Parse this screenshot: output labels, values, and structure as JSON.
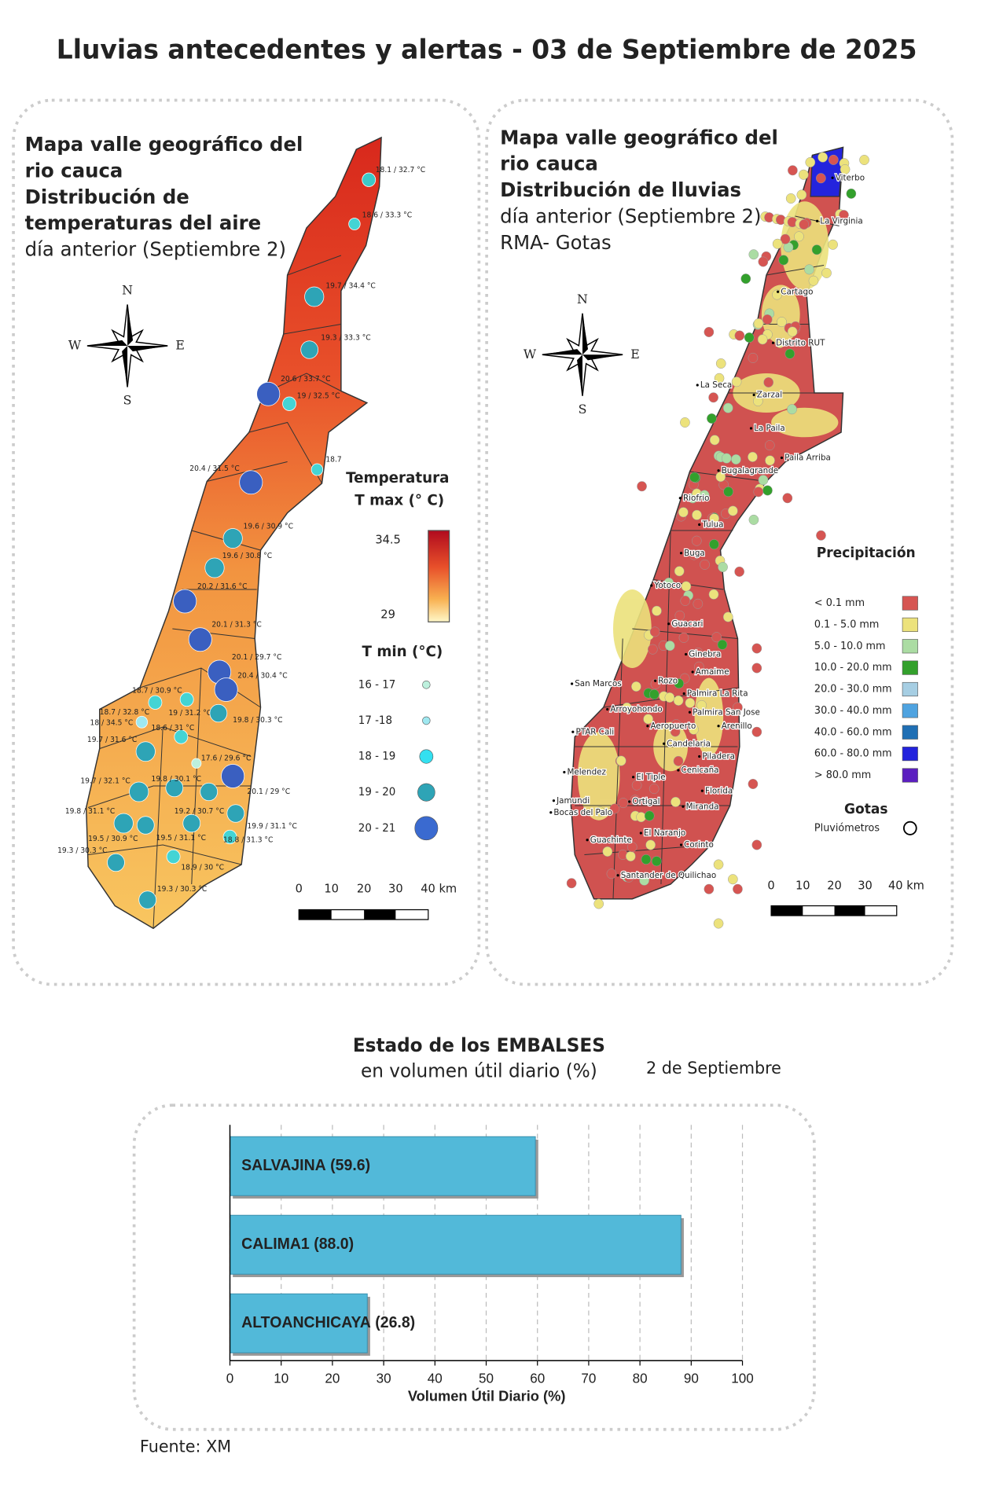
{
  "title": "Lluvias antecedentes y alertas - 03 de Septiembre de 2025",
  "temperature_map": {
    "title_lines": [
      {
        "text": "Mapa valle geográfico del",
        "bold": true
      },
      {
        "text": "rio cauca",
        "bold": true
      },
      {
        "text": "Distribución de",
        "bold": true
      },
      {
        "text": "temperaturas del aire",
        "bold": true
      },
      {
        "text": "día anterior (Septiembre 2)",
        "bold": false
      }
    ],
    "compass": {
      "n": "N",
      "w": "W",
      "e": "E",
      "s": "S"
    },
    "legend_title": "Temperatura",
    "legend_subtitle": "T max (° C)",
    "colorbar_max": "34.5",
    "colorbar_min": "29",
    "tmin_title": "T min (°C)",
    "tmin_classes": [
      "16 - 17",
      "17 -18",
      "18 - 19",
      "19 - 20",
      "20 - 21"
    ],
    "scale_labels": [
      "0",
      "10",
      "20",
      "30",
      "40 km"
    ],
    "stations": [
      "18.1 / 32.7 °C",
      "18.6 / 33.3 °C",
      "19.7 / 34.4 °C",
      "19.3 / 33.3 °C",
      "20.6 / 33.7 °C",
      "19 / 32.5 °C",
      "18.7",
      "20.4 / 31.5 °C",
      "19.6 / 30.9 °C",
      "19.6 / 30.8 °C",
      "20.2 / 31.6 °C",
      "20.1 / 31.3 °C",
      "20.1 / 29.7 °C",
      "20.4 / 30.4 °C",
      "18.7 / 30.9 °C",
      "19 / 31.2 °C",
      "19.8 / 30.3 °C",
      "18.7 / 32.8 °C",
      "18 / 34.5 °C",
      "18.6 / 31 °C",
      "19.7 / 31.6 °C",
      "17.6 / 29.6 °C",
      "19.7 / 32.1 °C",
      "19.8 / 30.1 °C",
      "20.1 / 29 °C",
      "19.8 / 31.1 °C",
      "19.2 / 30.7 °C",
      "19.9 / 31.1 °C",
      "19.5 / 30.9 °C",
      "19.5 / 31.1 °C",
      "18.8 / 31.3 °C",
      "19.3 / 30.3 °C",
      "18.9 / 30 °C",
      "19.3 / 30.3 °C"
    ]
  },
  "rain_map": {
    "title_lines": [
      {
        "text": "Mapa valle geográfico del",
        "bold": true
      },
      {
        "text": "rio cauca",
        "bold": true
      },
      {
        "text": "Distribución de lluvias",
        "bold": true
      },
      {
        "text": "día anterior (Septiembre 2)",
        "bold": false
      },
      {
        "text": "RMA- Gotas",
        "bold": false
      }
    ],
    "compass": {
      "n": "N",
      "w": "W",
      "e": "E",
      "s": "S"
    },
    "legend_title": "Precipitación",
    "classes": [
      {
        "label": "< 0.1 mm",
        "color": "#d65552"
      },
      {
        "label": "0.1 - 5.0 mm",
        "color": "#ece27c"
      },
      {
        "label": "5.0 - 10.0 mm",
        "color": "#abdca3"
      },
      {
        "label": "10.0 - 20.0 mm",
        "color": "#33a02c"
      },
      {
        "label": "20.0 - 30.0 mm",
        "color": "#a6cee3"
      },
      {
        "label": "30.0 - 40.0 mm",
        "color": "#4fa3e0"
      },
      {
        "label": "40.0 - 60.0 mm",
        "color": "#1f6fb4"
      },
      {
        "label": "60.0 - 80.0 mm",
        "color": "#2222dd"
      },
      {
        "label": "> 80.0 mm",
        "color": "#5b1fc0"
      }
    ],
    "gotas_title": "Gotas",
    "gotas_label": "Pluviómetros",
    "scale_labels": [
      "0",
      "10",
      "20",
      "30",
      "40 km"
    ],
    "towns": [
      "Viterbo",
      "La Virginia",
      "Cartago",
      "Distrito RUT",
      "La Seca",
      "Zarzal",
      "La Paila",
      "Paila Arriba",
      "Bugalagrande",
      "Riofrio",
      "Tulua",
      "Buga",
      "Yotoco",
      "Guacari",
      "Ginebra",
      "Amaime",
      "San Marcos",
      "Rozo",
      "Palmira La Rita",
      "Arroyohondo",
      "Palmira San Jose",
      "Aeropuerto",
      "Arenillo",
      "PTAR Cali",
      "Candelaria",
      "Piladera",
      "Melendez",
      "Cenicaña",
      "El Tiple",
      "Florida",
      "Ortigal",
      "Jamundi",
      "Bocas del Palo",
      "Miranda",
      "El Naranjo",
      "Guachinte",
      "Corinto",
      "Santander de Quilichao"
    ]
  },
  "chart_data": {
    "type": "bar",
    "orientation": "horizontal",
    "title": "Estado de los EMBALSES",
    "subtitle": "en volumen útil diario (%)",
    "date": "2 de Septiembre",
    "categories": [
      "SALVAJINA",
      "CALIMA1",
      "ALTOANCHICAYA"
    ],
    "values": [
      59.6,
      88.0,
      26.8
    ],
    "value_labels": [
      "(59.6)",
      "(88.0)",
      "(26.8)"
    ],
    "color": "#52b9d9",
    "xlim": [
      0,
      100
    ],
    "xticks": [
      0,
      10,
      20,
      30,
      40,
      50,
      60,
      70,
      80,
      90,
      100
    ],
    "xlabel": "Volumen Útil Diario (%)",
    "grid": true
  },
  "source": "Fuente: XM"
}
